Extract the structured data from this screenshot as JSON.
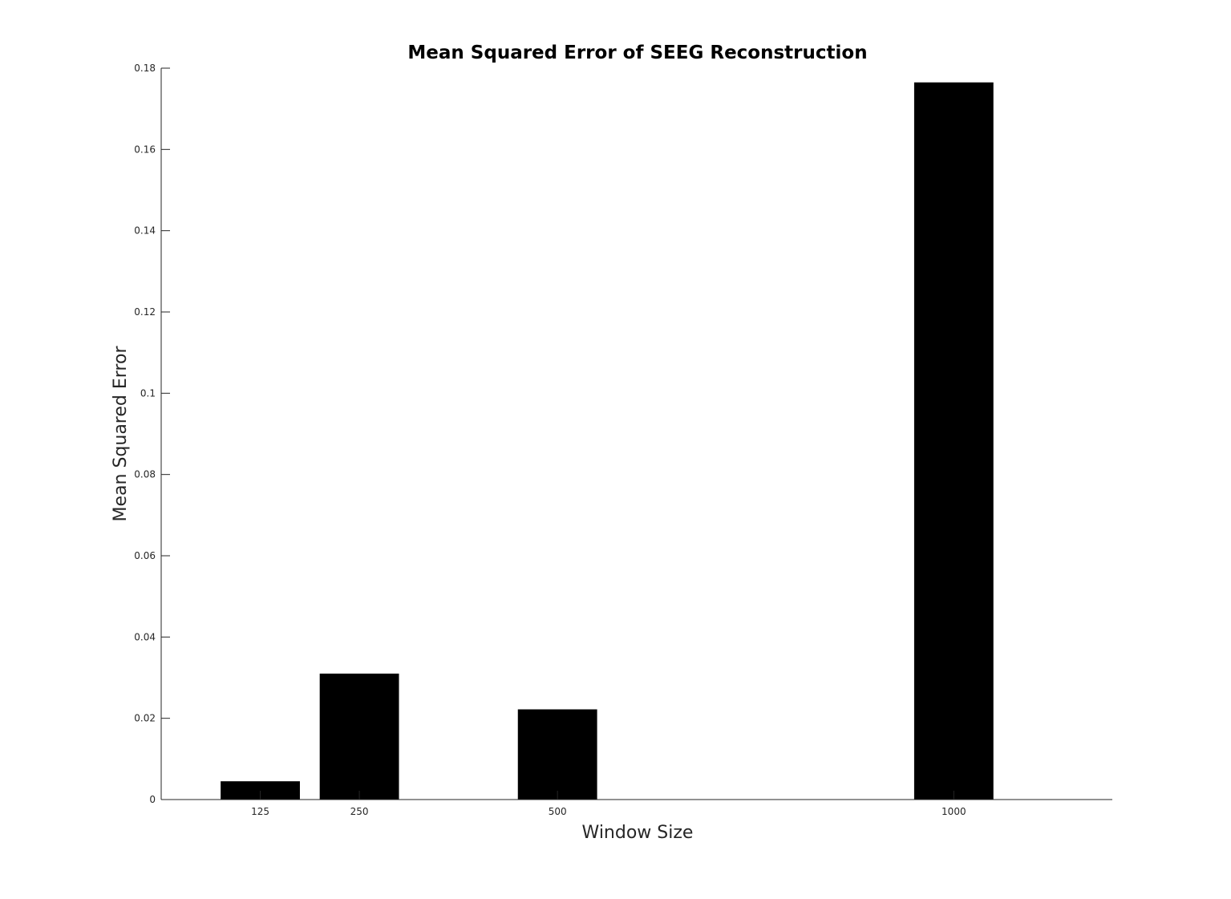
{
  "chart_data": {
    "type": "bar",
    "title": "Mean Squared Error of SEEG Reconstruction",
    "xlabel": "Window Size",
    "ylabel": "Mean Squared Error",
    "x": [
      125,
      250,
      500,
      1000
    ],
    "x_tick_labels": [
      "125",
      "250",
      "500",
      "1000"
    ],
    "values": [
      0.0045,
      0.031,
      0.0222,
      0.1765
    ],
    "xlim": [
      0,
      1200
    ],
    "ylim": [
      0,
      0.18
    ],
    "y_ticks": [
      0,
      0.02,
      0.04,
      0.06,
      0.08,
      0.1,
      0.12,
      0.14,
      0.16,
      0.18
    ],
    "y_tick_labels": [
      "0",
      "0.02",
      "0.04",
      "0.06",
      "0.08",
      "0.1",
      "0.12",
      "0.14",
      "0.16",
      "0.18"
    ],
    "bar_width": 100,
    "bar_color": "#000000",
    "grid": false,
    "legend": "none"
  }
}
